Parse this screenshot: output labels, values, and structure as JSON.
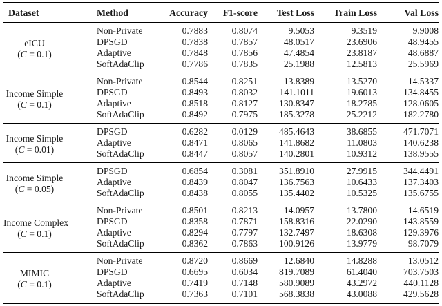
{
  "page": {
    "background_color": "#ffffff",
    "text_color": "#1a1a1a",
    "rule_color": "#000000"
  },
  "table": {
    "columns": [
      "Dataset",
      "Method",
      "Accuracy",
      "F1-score",
      "Test Loss",
      "Train Loss",
      "Val Loss"
    ],
    "groups": [
      {
        "dataset": "eICU",
        "constraint": "(C = 0.1)",
        "rows": [
          {
            "method": "Non-Private",
            "accuracy": "0.7883",
            "f1_score": "0.8074",
            "test_loss": "9.5053",
            "train_loss": "9.3519",
            "val_loss": "9.9008"
          },
          {
            "method": "DPSGD",
            "accuracy": "0.7838",
            "f1_score": "0.7857",
            "test_loss": "48.0517",
            "train_loss": "23.6906",
            "val_loss": "48.9455"
          },
          {
            "method": "Adaptive",
            "accuracy": "0.7848",
            "f1_score": "0.7856",
            "test_loss": "47.4854",
            "train_loss": "23.8187",
            "val_loss": "48.6887"
          },
          {
            "method": "SoftAdaClip",
            "accuracy": "0.7786",
            "f1_score": "0.7835",
            "test_loss": "25.1988",
            "train_loss": "12.5813",
            "val_loss": "25.5969"
          }
        ]
      },
      {
        "dataset": "Income Simple",
        "constraint": "(C = 0.1)",
        "rows": [
          {
            "method": "Non-Private",
            "accuracy": "0.8544",
            "f1_score": "0.8251",
            "test_loss": "13.8389",
            "train_loss": "13.5270",
            "val_loss": "14.5337"
          },
          {
            "method": "DPSGD",
            "accuracy": "0.8493",
            "f1_score": "0.8032",
            "test_loss": "141.1011",
            "train_loss": "19.6013",
            "val_loss": "134.8455"
          },
          {
            "method": "Adaptive",
            "accuracy": "0.8518",
            "f1_score": "0.8127",
            "test_loss": "130.8347",
            "train_loss": "18.2785",
            "val_loss": "128.0605"
          },
          {
            "method": "SoftAdaClip",
            "accuracy": "0.8492",
            "f1_score": "0.7975",
            "test_loss": "185.3278",
            "train_loss": "25.2212",
            "val_loss": "182.2780"
          }
        ]
      },
      {
        "dataset": "Income Simple",
        "constraint": "(C = 0.01)",
        "rows": [
          {
            "method": "DPSGD",
            "accuracy": "0.6282",
            "f1_score": "0.0129",
            "test_loss": "485.4643",
            "train_loss": "38.6855",
            "val_loss": "471.7071"
          },
          {
            "method": "Adaptive",
            "accuracy": "0.8471",
            "f1_score": "0.8065",
            "test_loss": "141.8682",
            "train_loss": "11.0803",
            "val_loss": "140.6238"
          },
          {
            "method": "SoftAdaClip",
            "accuracy": "0.8447",
            "f1_score": "0.8057",
            "test_loss": "140.2801",
            "train_loss": "10.9312",
            "val_loss": "138.9555"
          }
        ]
      },
      {
        "dataset": "Income Simple",
        "constraint": "(C = 0.05)",
        "rows": [
          {
            "method": "DPSGD",
            "accuracy": "0.6854",
            "f1_score": "0.3081",
            "test_loss": "351.8910",
            "train_loss": "27.9915",
            "val_loss": "344.4491"
          },
          {
            "method": "Adaptive",
            "accuracy": "0.8439",
            "f1_score": "0.8047",
            "test_loss": "136.7563",
            "train_loss": "10.6433",
            "val_loss": "137.3403"
          },
          {
            "method": "SoftAdaClip",
            "accuracy": "0.8438",
            "f1_score": "0.8055",
            "test_loss": "135.4402",
            "train_loss": "10.5325",
            "val_loss": "135.6755"
          }
        ]
      },
      {
        "dataset": "Income Complex",
        "constraint": "(C = 0.1)",
        "rows": [
          {
            "method": "Non-Private",
            "accuracy": "0.8501",
            "f1_score": "0.8213",
            "test_loss": "14.0957",
            "train_loss": "13.7800",
            "val_loss": "14.6519"
          },
          {
            "method": "DPSGD",
            "accuracy": "0.8358",
            "f1_score": "0.7871",
            "test_loss": "158.8316",
            "train_loss": "22.0290",
            "val_loss": "143.8559"
          },
          {
            "method": "Adaptive",
            "accuracy": "0.8294",
            "f1_score": "0.7797",
            "test_loss": "132.7497",
            "train_loss": "18.6308",
            "val_loss": "129.3976"
          },
          {
            "method": "SoftAdaClip",
            "accuracy": "0.8362",
            "f1_score": "0.7863",
            "test_loss": "100.9126",
            "train_loss": "13.9779",
            "val_loss": "98.7079"
          }
        ]
      },
      {
        "dataset": "MIMIC",
        "constraint": "(C = 0.1)",
        "rows": [
          {
            "method": "Non-Private",
            "accuracy": "0.8720",
            "f1_score": "0.8669",
            "test_loss": "12.6840",
            "train_loss": "14.8288",
            "val_loss": "13.0512"
          },
          {
            "method": "DPSGD",
            "accuracy": "0.6695",
            "f1_score": "0.6034",
            "test_loss": "819.7089",
            "train_loss": "61.4040",
            "val_loss": "703.7503"
          },
          {
            "method": "Adaptive",
            "accuracy": "0.7419",
            "f1_score": "0.7148",
            "test_loss": "580.9089",
            "train_loss": "43.2972",
            "val_loss": "440.1128"
          },
          {
            "method": "SoftAdaClip",
            "accuracy": "0.7363",
            "f1_score": "0.7101",
            "test_loss": "568.3838",
            "train_loss": "43.0088",
            "val_loss": "429.5628"
          }
        ]
      }
    ]
  }
}
